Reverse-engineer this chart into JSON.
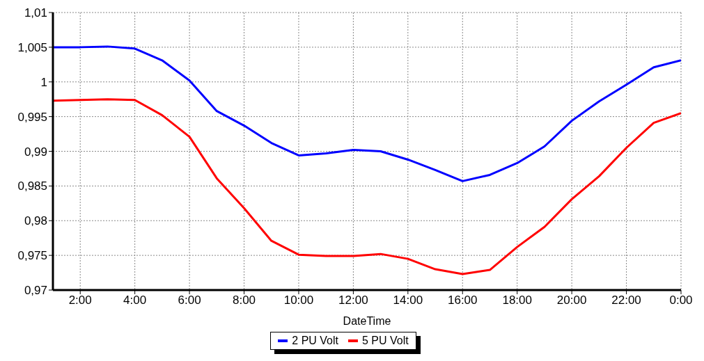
{
  "chart_data": {
    "type": "line",
    "xlabel": "DateTime",
    "x": [
      1,
      2,
      3,
      4,
      5,
      6,
      7,
      8,
      9,
      10,
      11,
      12,
      13,
      14,
      15,
      16,
      17,
      18,
      19,
      20,
      21,
      22,
      23,
      24
    ],
    "series": [
      {
        "name": "2 PU Volt",
        "color": "#0000ff",
        "values": [
          1.005,
          1.005,
          1.0051,
          1.0048,
          1.0031,
          1.0002,
          0.9958,
          0.9937,
          0.9912,
          0.9894,
          0.9897,
          0.9902,
          0.99,
          0.9888,
          0.9873,
          0.9857,
          0.9866,
          0.9883,
          0.9907,
          0.9944,
          0.9972,
          0.9996,
          1.0021,
          1.0031
        ]
      },
      {
        "name": "5 PU Volt",
        "color": "#ff0000",
        "values": [
          0.9973,
          0.9974,
          0.9975,
          0.9974,
          0.9952,
          0.9921,
          0.9861,
          0.9818,
          0.9771,
          0.9751,
          0.9749,
          0.9749,
          0.9752,
          0.9745,
          0.973,
          0.9723,
          0.9729,
          0.9762,
          0.9791,
          0.9831,
          0.9864,
          0.9905,
          0.9941,
          0.9955
        ]
      }
    ],
    "xlim": [
      1,
      24
    ],
    "xticks": [
      {
        "value": 2,
        "label": "2:00"
      },
      {
        "value": 4,
        "label": "4:00"
      },
      {
        "value": 6,
        "label": "6:00"
      },
      {
        "value": 8,
        "label": "8:00"
      },
      {
        "value": 10,
        "label": "10:00"
      },
      {
        "value": 12,
        "label": "12:00"
      },
      {
        "value": 14,
        "label": "14:00"
      },
      {
        "value": 16,
        "label": "16:00"
      },
      {
        "value": 18,
        "label": "18:00"
      },
      {
        "value": 20,
        "label": "20:00"
      },
      {
        "value": 22,
        "label": "22:00"
      },
      {
        "value": 24,
        "label": "0:00"
      }
    ],
    "ylim": [
      0.97,
      1.01
    ],
    "yticks": [
      {
        "value": 0.97,
        "label": "0,97"
      },
      {
        "value": 0.975,
        "label": "0,975"
      },
      {
        "value": 0.98,
        "label": "0,98"
      },
      {
        "value": 0.985,
        "label": "0,985"
      },
      {
        "value": 0.99,
        "label": "0,99"
      },
      {
        "value": 0.995,
        "label": "0,995"
      },
      {
        "value": 1,
        "label": "1"
      },
      {
        "value": 1.005,
        "label": "1,005"
      },
      {
        "value": 1.01,
        "label": "1,01"
      }
    ],
    "grid": true,
    "legend": "bottom",
    "marker": "none",
    "line_style": "solid"
  }
}
